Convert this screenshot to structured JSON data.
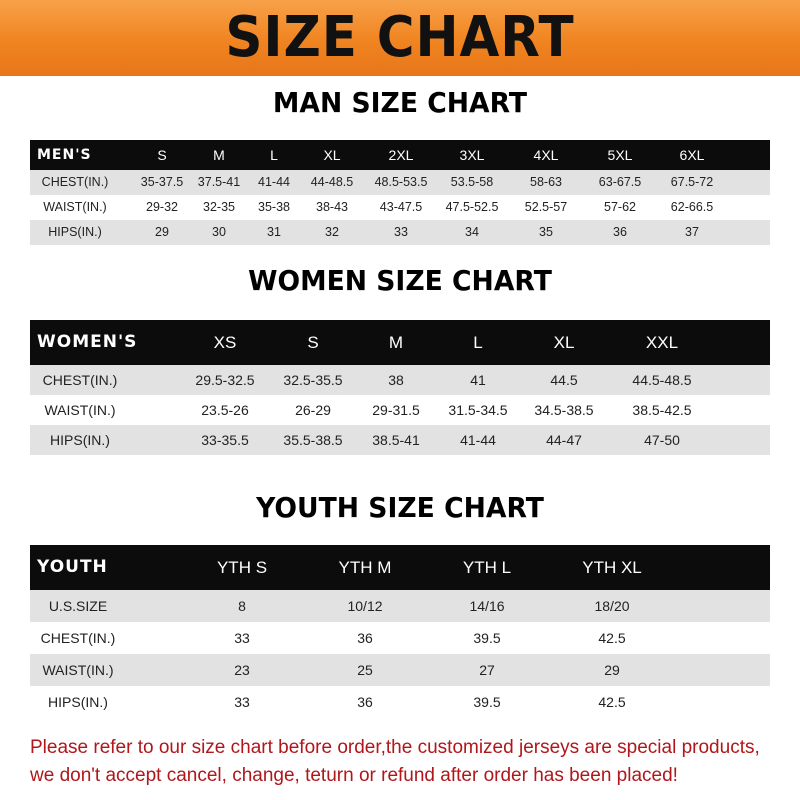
{
  "title": "SIZE CHART",
  "men": {
    "title": "MAN SIZE CHART",
    "columns": [
      "MEN'S",
      "S",
      "M",
      "L",
      "XL",
      "2XL",
      "3XL",
      "4XL",
      "5XL",
      "6XL"
    ],
    "rows": [
      [
        "CHEST(IN.)",
        "35-37.5",
        "37.5-41",
        "41-44",
        "44-48.5",
        "48.5-53.5",
        "53.5-58",
        "58-63",
        "63-67.5",
        "67.5-72"
      ],
      [
        "WAIST(IN.)",
        "29-32",
        "32-35",
        "35-38",
        "38-43",
        "43-47.5",
        "47.5-52.5",
        "52.5-57",
        "57-62",
        "62-66.5"
      ],
      [
        "HIPS(IN.)",
        "29",
        "30",
        "31",
        "32",
        "33",
        "34",
        "35",
        "36",
        "37"
      ]
    ]
  },
  "women": {
    "title": "WOMEN SIZE CHART",
    "columns": [
      "WOMEN'S",
      "XS",
      "S",
      "M",
      "L",
      "XL",
      "XXL"
    ],
    "rows": [
      [
        "CHEST(IN.)",
        "29.5-32.5",
        "32.5-35.5",
        "38",
        "41",
        "44.5",
        "44.5-48.5"
      ],
      [
        "WAIST(IN.)",
        "23.5-26",
        "26-29",
        "29-31.5",
        "31.5-34.5",
        "34.5-38.5",
        "38.5-42.5"
      ],
      [
        "HIPS(IN.)",
        "33-35.5",
        "35.5-38.5",
        "38.5-41",
        "41-44",
        "44-47",
        "47-50"
      ]
    ]
  },
  "youth": {
    "title": "YOUTH SIZE CHART",
    "columns": [
      "YOUTH",
      "YTH S",
      "YTH M",
      "YTH L",
      "YTH XL"
    ],
    "rows": [
      [
        "U.S.SIZE",
        "8",
        "10/12",
        "14/16",
        "18/20"
      ],
      [
        "CHEST(IN.)",
        "33",
        "36",
        "39.5",
        "42.5"
      ],
      [
        "WAIST(IN.)",
        "23",
        "25",
        "27",
        "29"
      ],
      [
        "HIPS(IN.)",
        "33",
        "36",
        "39.5",
        "42.5"
      ]
    ]
  },
  "notice": {
    "line1": "Please refer to our size chart before order,the customized jerseys are special products,",
    "line2": "we don't accept cancel, change, teturn or refund after order has been placed!"
  },
  "colors": {
    "banner": "#f08420",
    "header_row": "#0c0c0c",
    "stripe": "#e2e2e2",
    "notice": "#b0161a"
  }
}
